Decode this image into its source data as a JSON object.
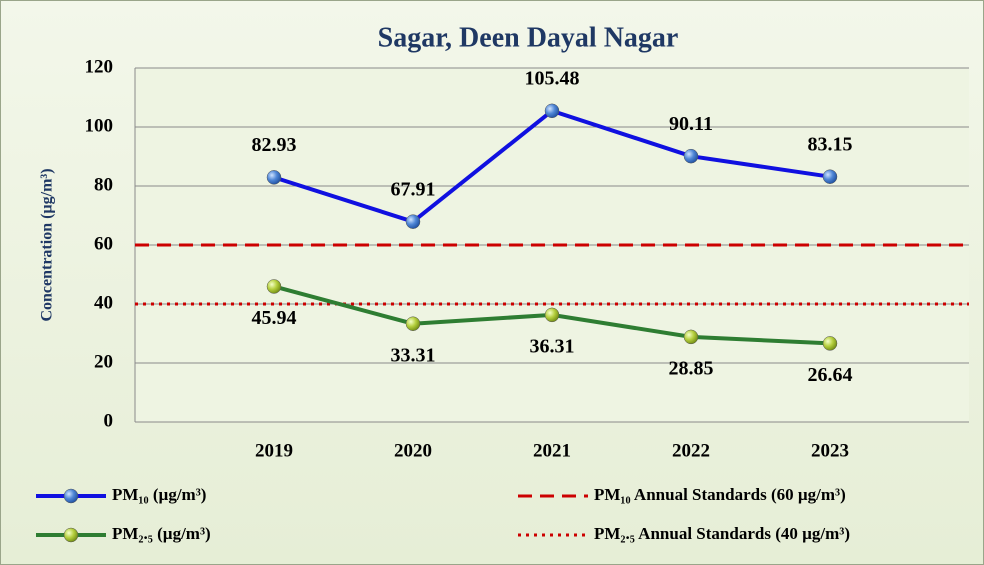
{
  "chart_data": {
    "type": "line",
    "title": "Sagar, Deen Dayal Nagar",
    "y_label": "Concentration (µg/m³)",
    "categories": [
      "2019",
      "2020",
      "2021",
      "2022",
      "2023"
    ],
    "ylim": [
      0,
      120
    ],
    "yticks": [
      0,
      20,
      40,
      60,
      80,
      100,
      120
    ],
    "grid": true,
    "series": [
      {
        "name": "PM₁₀ (µg/m³)",
        "color": "#1010e0",
        "values": [
          82.93,
          67.91,
          105.48,
          90.11,
          83.15
        ]
      },
      {
        "name": "PM₂.₅ (µg/m³)",
        "color": "#2e7d32",
        "values": [
          45.94,
          33.31,
          36.31,
          28.85,
          26.64
        ]
      }
    ],
    "reference_lines": [
      {
        "name": "PM₁₀ Annual Standards (60 µg/m³)",
        "value": 60,
        "color": "#cc0000",
        "style": "dashed"
      },
      {
        "name": "PM₂.₅ Annual Standards (40 µg/m³)",
        "value": 40,
        "color": "#cc0000",
        "style": "dotted"
      }
    ],
    "legend": "bottom"
  }
}
